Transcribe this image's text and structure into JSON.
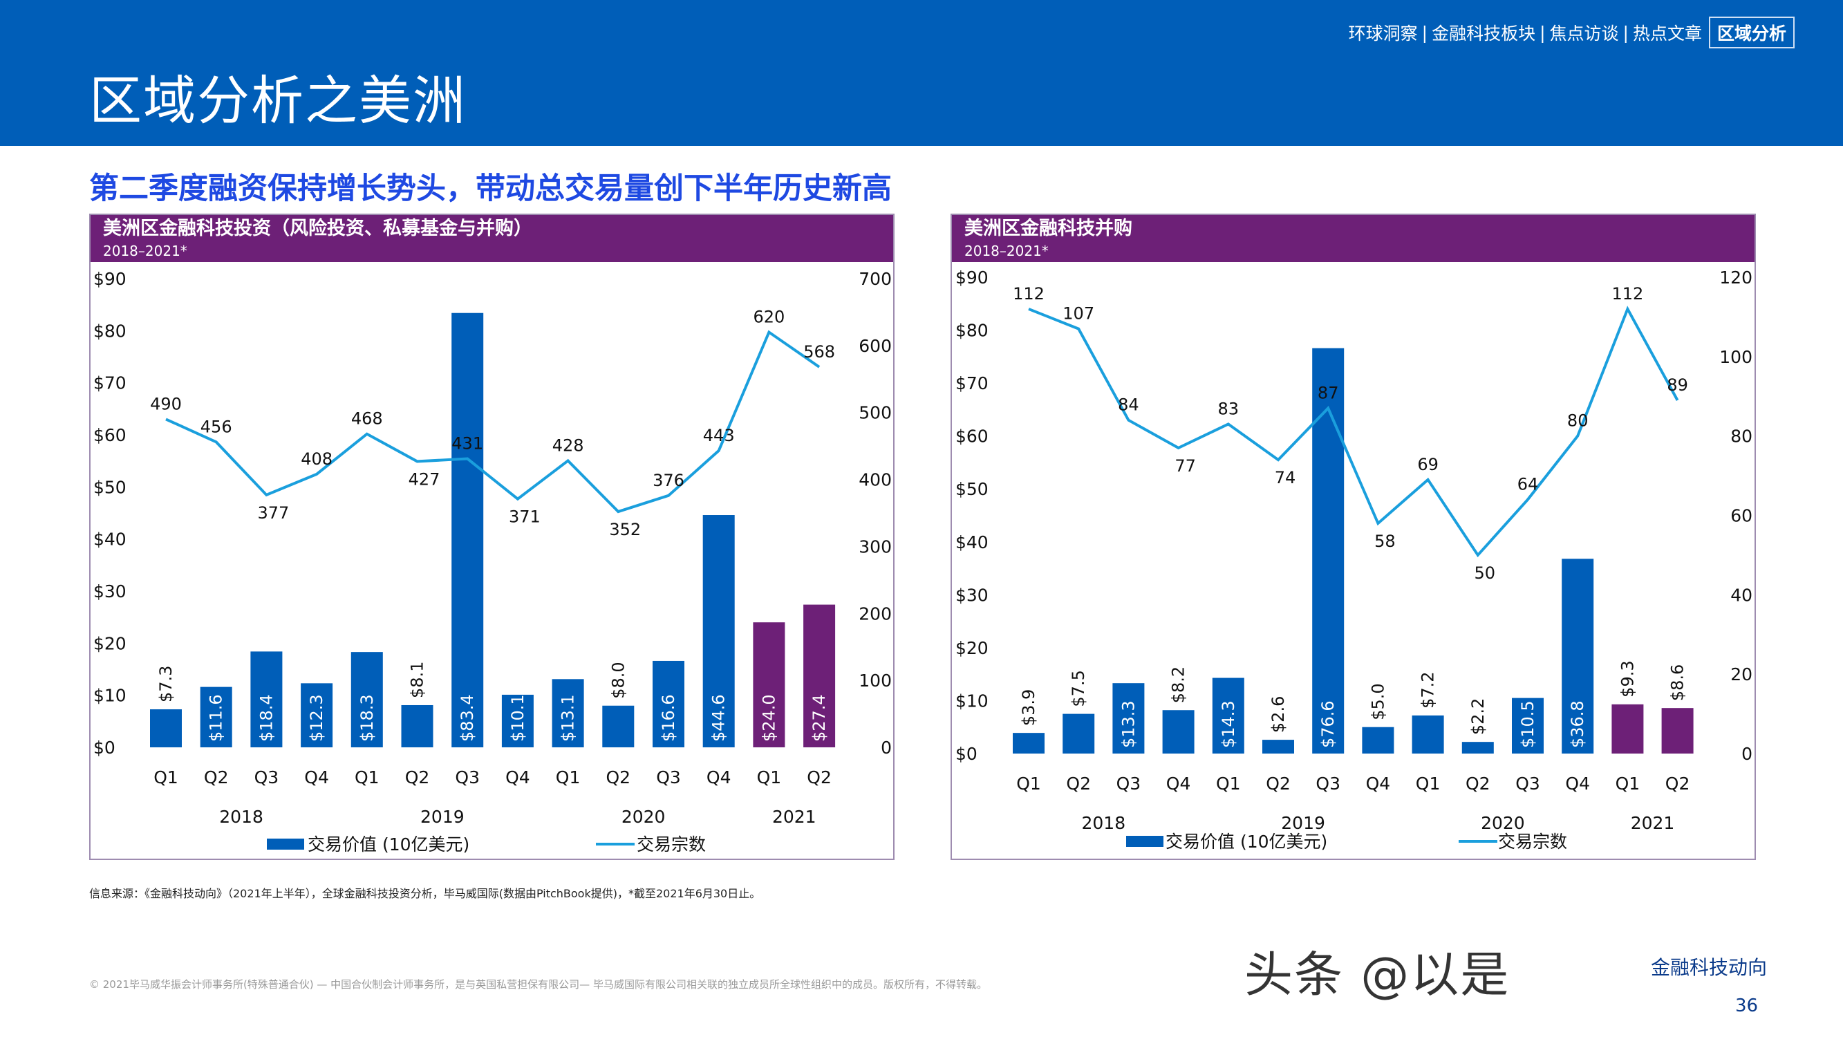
{
  "header": {
    "title": "区域分析之美洲",
    "nav": [
      "环球洞察",
      "金融科技板块",
      "焦点访谈",
      "热点文章"
    ],
    "nav_active": "区域分析",
    "nav_separator": "|"
  },
  "subtitle": "第二季度融资保持增长势头，带动总交易量创下半年历史新高",
  "colors": {
    "header": "#005eb8",
    "bar": "#005eb8",
    "bar_2021": "#6d2077",
    "line": "#1a9fdd",
    "panel_header": "#6d2077",
    "subtitle": "#1e49e2"
  },
  "chart_data": [
    {
      "type": "bar+line",
      "title": "美洲区金融科技投资（风险投资、私募基金与并购）",
      "subtitle": "2018–2021*",
      "categories": [
        "Q1",
        "Q2",
        "Q3",
        "Q4",
        "Q1",
        "Q2",
        "Q3",
        "Q4",
        "Q1",
        "Q2",
        "Q3",
        "Q4",
        "Q1",
        "Q2"
      ],
      "years": [
        {
          "label": "2018",
          "span": 4
        },
        {
          "label": "2019",
          "span": 4
        },
        {
          "label": "2020",
          "span": 4
        },
        {
          "label": "2021",
          "span": 2
        }
      ],
      "bar_series": {
        "name": "交易价值 (10亿美元)",
        "values": [
          7.3,
          11.6,
          18.4,
          12.3,
          18.3,
          8.1,
          83.4,
          10.1,
          13.1,
          8.0,
          16.6,
          44.6,
          24.0,
          27.4
        ]
      },
      "line_series": {
        "name": "交易宗数",
        "values": [
          490,
          456,
          377,
          408,
          468,
          427,
          431,
          371,
          428,
          352,
          376,
          443,
          620,
          568
        ]
      },
      "y_left": {
        "range": [
          0,
          90
        ],
        "step": 10,
        "prefix": "$"
      },
      "y_right": {
        "range": [
          0,
          700
        ],
        "step": 100
      },
      "legend_placement": "bottom"
    },
    {
      "type": "bar+line",
      "title": "美洲区金融科技并购",
      "subtitle": "2018–2021*",
      "categories": [
        "Q1",
        "Q2",
        "Q3",
        "Q4",
        "Q1",
        "Q2",
        "Q3",
        "Q4",
        "Q1",
        "Q2",
        "Q3",
        "Q4",
        "Q1",
        "Q2"
      ],
      "years": [
        {
          "label": "2018",
          "span": 4
        },
        {
          "label": "2019",
          "span": 4
        },
        {
          "label": "2020",
          "span": 4
        },
        {
          "label": "2021",
          "span": 2
        }
      ],
      "bar_series": {
        "name": "交易价值 (10亿美元)",
        "values": [
          3.9,
          7.5,
          13.3,
          8.2,
          14.3,
          2.6,
          76.6,
          5.0,
          7.2,
          2.2,
          10.5,
          36.8,
          9.3,
          8.6
        ]
      },
      "line_series": {
        "name": "交易宗数",
        "values": [
          112,
          107,
          84,
          77,
          83,
          74,
          87,
          58,
          69,
          50,
          64,
          80,
          112,
          89
        ]
      },
      "y_left": {
        "range": [
          0,
          90
        ],
        "step": 10,
        "prefix": "$"
      },
      "y_right": {
        "range": [
          0,
          120
        ],
        "step": 20
      },
      "legend_placement": "bottom"
    }
  ],
  "source": "信息来源：《金融科技动向》（2021年上半年），全球金融科技投资分析，毕马威国际(数据由PitchBook提供)，*截至2021年6月30日止。",
  "copyright": "© 2021毕马威华振会计师事务所(特殊普通合伙) — 中国合伙制会计师事务所，是与英国私营担保有限公司— 毕马威国际有限公司相关联的独立成员所全球性组织中的成员。版权所有，不得转载。",
  "footer": {
    "brand": "金融科技动向",
    "page_number": "36"
  },
  "watermark": "头条 @以是"
}
